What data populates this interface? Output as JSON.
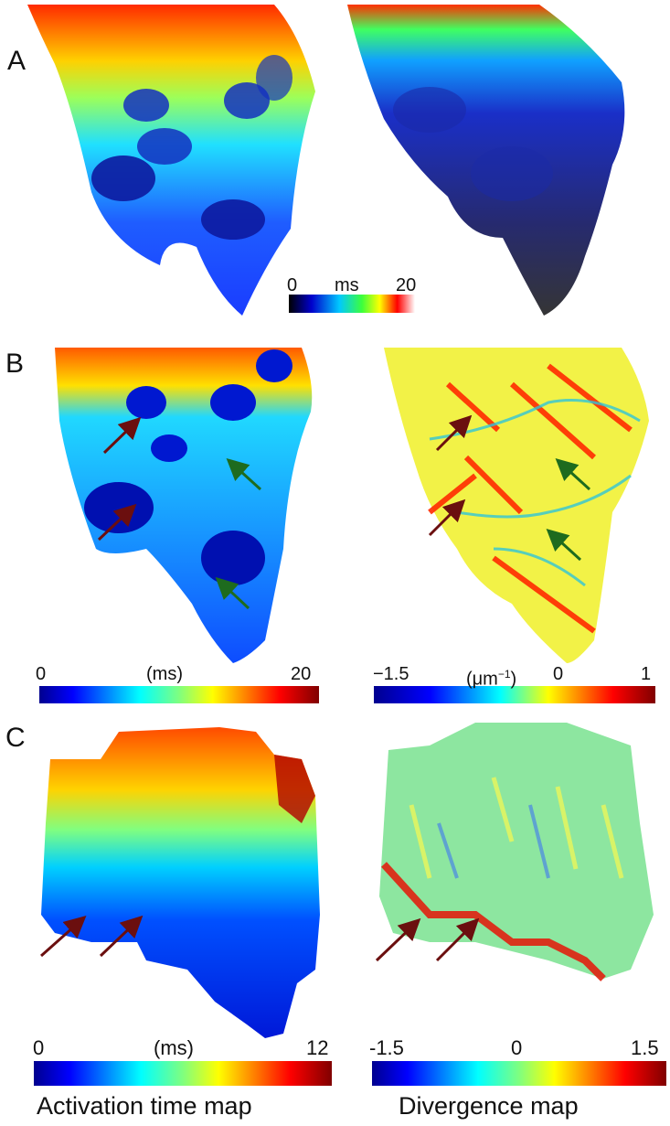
{
  "panels": {
    "A": {
      "letter": "A",
      "colorbar": {
        "min": "0",
        "unit": "ms",
        "max": "20"
      }
    },
    "B": {
      "letter": "B",
      "left_colorbar": {
        "min": "0",
        "unit": "(ms)",
        "max": "20"
      },
      "right_colorbar": {
        "min": "−1.5",
        "unit_base": "(μm",
        "unit_exp": "−1",
        "unit_close": ")",
        "mid": "0",
        "max": "1"
      }
    },
    "C": {
      "letter": "C",
      "left_colorbar": {
        "min": "0",
        "unit": "(ms)",
        "max": "12"
      },
      "right_colorbar": {
        "min": "-1.5",
        "mid": "0",
        "max": "1.5"
      }
    }
  },
  "captions": {
    "activation": "Activation time map",
    "divergence": "Divergence map"
  },
  "colors": {
    "arrow_dark_red": "#6b0f0f",
    "arrow_green": "#1e6b1e"
  }
}
